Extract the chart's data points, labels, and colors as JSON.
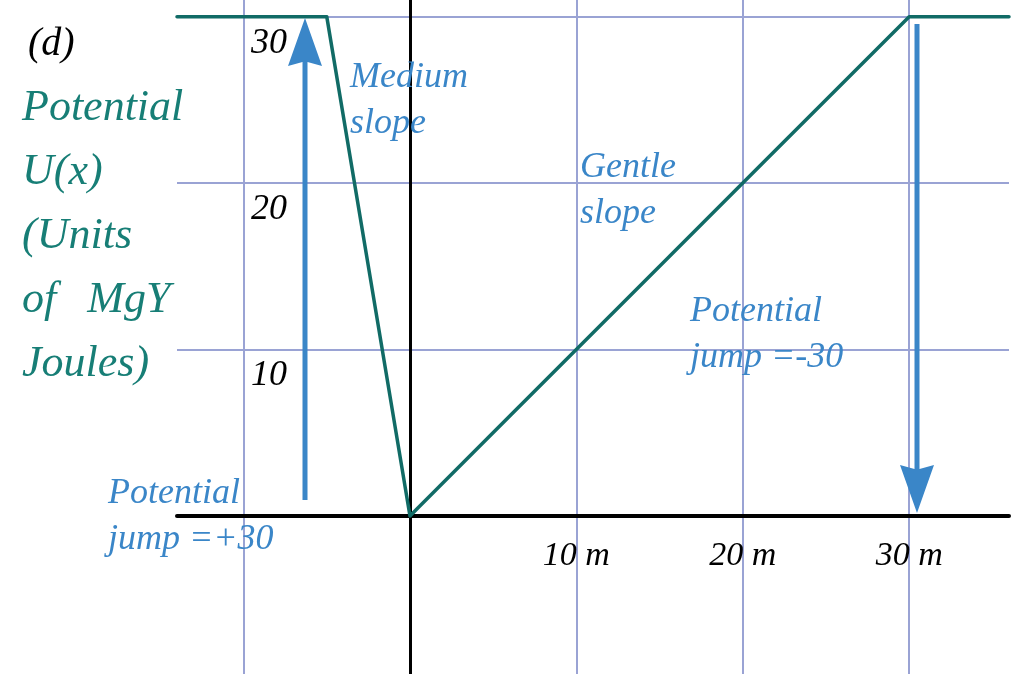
{
  "chart_data": {
    "type": "line",
    "title": "(d)",
    "ylabel": "Potential U(x) (Units of MgY Joules)",
    "x": [
      -14,
      -5,
      0,
      30,
      36
    ],
    "series": [
      {
        "color": "#116b66",
        "values": [
          30,
          30,
          0,
          30,
          30
        ]
      }
    ],
    "xlim": [
      -14,
      36
    ],
    "ylim": [
      -9.5,
      31
    ],
    "xticks": [
      {
        "value": -10,
        "label": null
      },
      {
        "value": 0,
        "label": null
      },
      {
        "value": 10,
        "label": "10 m"
      },
      {
        "value": 20,
        "label": "20 m"
      },
      {
        "value": 30,
        "label": "30 m"
      }
    ],
    "yticks": [
      {
        "value": 0,
        "label": null
      },
      10,
      20,
      30
    ],
    "grid": true,
    "marker": "none",
    "line_style": "solid",
    "annotations": [
      "Medium slope",
      "Gentle slope",
      "Potential jump =-30",
      "Potential jump =+30"
    ]
  }
}
